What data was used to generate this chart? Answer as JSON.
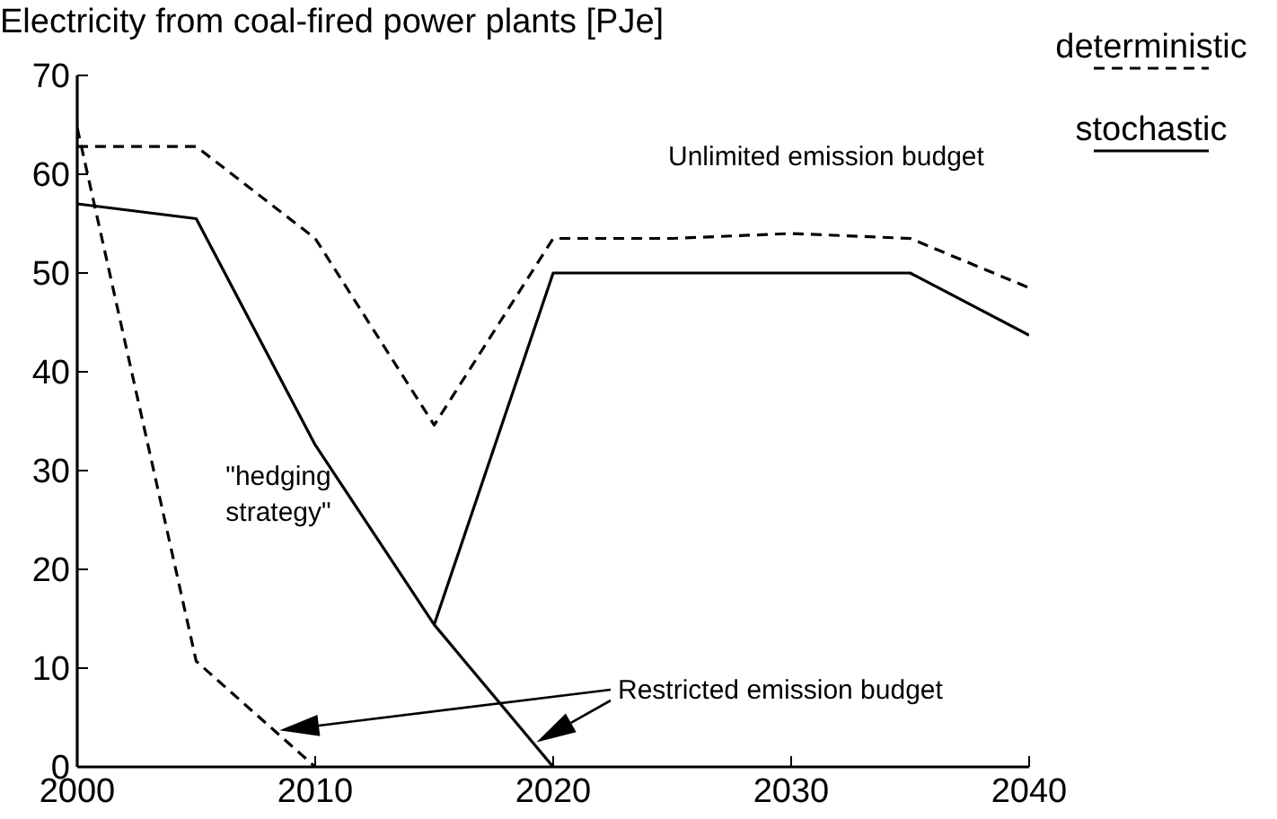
{
  "chart_data": {
    "type": "line",
    "title": "Electricity from coal-fired power plants [PJe]",
    "xlim": [
      2000,
      2040
    ],
    "xticks": [
      2000,
      2010,
      2020,
      2030,
      2040
    ],
    "ylim": [
      0,
      70
    ],
    "yticks": [
      0,
      10,
      20,
      30,
      40,
      50,
      60,
      70
    ],
    "grid": false,
    "legend": "top right",
    "marker": "none",
    "series": [
      {
        "name": "deterministic",
        "color": "#000000",
        "line_style": "dashed",
        "x": [
          2000,
          2005,
          2010,
          2015,
          2020,
          2025,
          2030,
          2035,
          2040
        ],
        "values": [
          62.8,
          62.8,
          53.5,
          34.6,
          53.5,
          53.5,
          54,
          53.5,
          48.5
        ]
      },
      {
        "color": "#000000",
        "line_style": "dashed",
        "x": [
          2000,
          2005,
          2010
        ],
        "values": [
          64.7,
          10.7,
          0
        ]
      },
      {
        "name": "stochastic",
        "color": "#000000",
        "line_style": "solid",
        "x": [
          2000,
          2005,
          2010,
          2015,
          2020,
          2025,
          2030,
          2035,
          2040
        ],
        "values": [
          57,
          55.5,
          32.6,
          14.4,
          50,
          50,
          50,
          50,
          43.7
        ]
      },
      {
        "color": "#000000",
        "line_style": "solid",
        "x": [
          2015,
          2020
        ],
        "values": [
          14.4,
          0
        ]
      }
    ],
    "annotations": [
      "Unlimited emission budget",
      "\"hedging strategy\"",
      "Restricted emission budget"
    ]
  }
}
